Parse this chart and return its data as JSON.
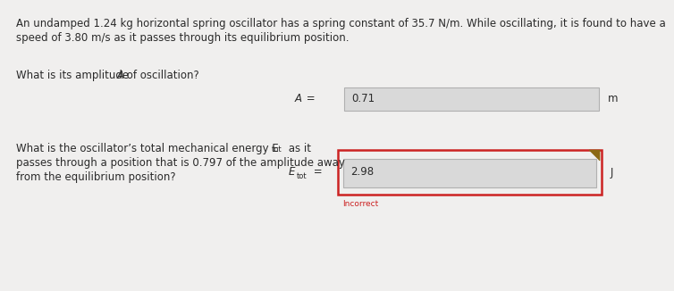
{
  "bg_color": "#f0efee",
  "text_color": "#2a2a2a",
  "line1": "An undamped 1.24 kg horizontal spring oscillator has a spring constant of 35.7 N/m. While oscillating, it is found to have a",
  "line2": "speed of 3.80 m/s as it passes through its equilibrium position.",
  "q1_text": "What is its amplitude ",
  "q1_text_italic": "A",
  "q1_text_end": " of oscillation?",
  "q1_label_italic": "A",
  "q1_label_rest": " =",
  "q1_value": "0.71",
  "q1_unit": "m",
  "q2_line1_start": "What is the oscillator’s total mechanical energy E",
  "q2_line1_sub": "tot",
  "q2_line1_end": " as it",
  "q2_line2": "passes through a position that is 0.797 of the amplitude away",
  "q2_line3": "from the equilibrium position?",
  "q2_label_E": "E",
  "q2_label_sub": "tot",
  "q2_label_eq": " =",
  "q2_value": "2.98",
  "q2_unit": "J",
  "incorrect_text": "Incorrect",
  "incorrect_color": "#cc2222",
  "box1_bg": "#d9d9d9",
  "box1_border": "#b0b0b0",
  "box2_bg": "#d9d9d9",
  "box2_border_inner": "#b0b0b0",
  "box2_border_outer": "#cc2222",
  "arrow_color": "#8B6914",
  "font_size_main": 8.5,
  "font_size_small": 6.0
}
